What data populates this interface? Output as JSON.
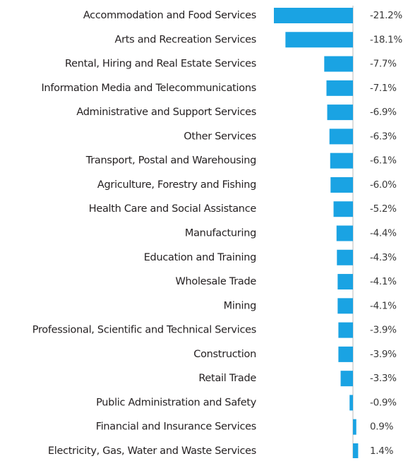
{
  "chart_data": {
    "type": "bar",
    "orientation": "horizontal",
    "categories": [
      "Accommodation and Food Services",
      "Arts and Recreation Services",
      "Rental, Hiring and Real Estate Services",
      "Information Media and Telecommunications",
      "Administrative and Support Services",
      "Other Services",
      "Transport, Postal and Warehousing",
      "Agriculture, Forestry and Fishing",
      "Health Care and Social Assistance",
      "Manufacturing",
      "Education and Training",
      "Wholesale Trade",
      "Mining",
      "Professional, Scientific and Technical Services",
      "Construction",
      "Retail Trade",
      "Public Administration and Safety",
      "Financial and Insurance Services",
      "Electricity, Gas, Water and Waste Services"
    ],
    "values": [
      -21.2,
      -18.1,
      -7.7,
      -7.1,
      -6.9,
      -6.3,
      -6.1,
      -6.0,
      -5.2,
      -4.4,
      -4.3,
      -4.1,
      -4.1,
      -3.9,
      -3.9,
      -3.3,
      -0.9,
      0.9,
      1.4
    ],
    "value_labels": [
      "-21.2%",
      "-18.1%",
      "-7.7%",
      "-7.1%",
      "-6.9%",
      "-6.3%",
      "-6.1%",
      "-6.0%",
      "-5.2%",
      "-4.4%",
      "-4.3%",
      "-4.1%",
      "-4.1%",
      "-3.9%",
      "-3.9%",
      "-3.3%",
      "-0.9%",
      "0.9%",
      "1.4%"
    ],
    "color": "#1aa3e3"
  }
}
